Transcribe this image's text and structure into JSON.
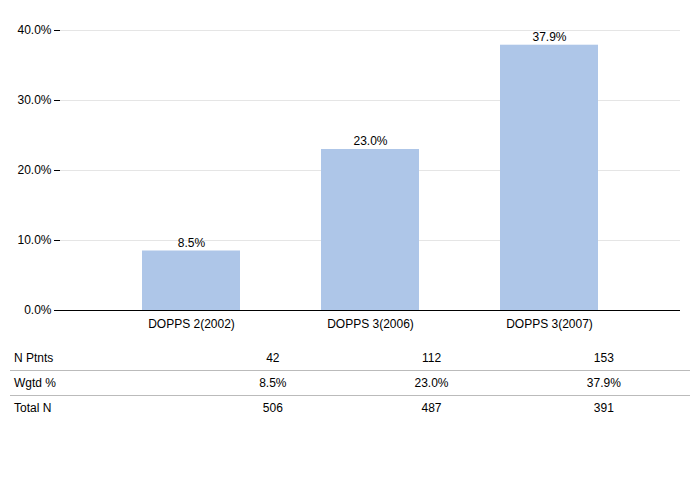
{
  "chart_data": {
    "type": "bar",
    "categories": [
      "DOPPS 2(2002)",
      "DOPPS 3(2006)",
      "DOPPS 3(2007)"
    ],
    "values": [
      8.5,
      23.0,
      37.9
    ],
    "value_labels": [
      "8.5%",
      "23.0%",
      "37.9%"
    ],
    "data_labels": true,
    "color": "#aec6e8",
    "ylim": [
      0,
      40
    ],
    "yticks": [
      {
        "value": 0,
        "label": "0.0%"
      },
      {
        "value": 10,
        "label": "10.0%"
      },
      {
        "value": 20,
        "label": "20.0%"
      },
      {
        "value": 30,
        "label": "30.0%"
      },
      {
        "value": 40,
        "label": "40.0%"
      }
    ],
    "grid": true,
    "table_rows": [
      [
        "N Ptnts",
        "42",
        "112",
        "153"
      ],
      [
        "Wgtd %",
        "8.5%",
        "23.0%",
        "37.9%"
      ],
      [
        "Total N",
        "506",
        "487",
        "391"
      ]
    ]
  }
}
